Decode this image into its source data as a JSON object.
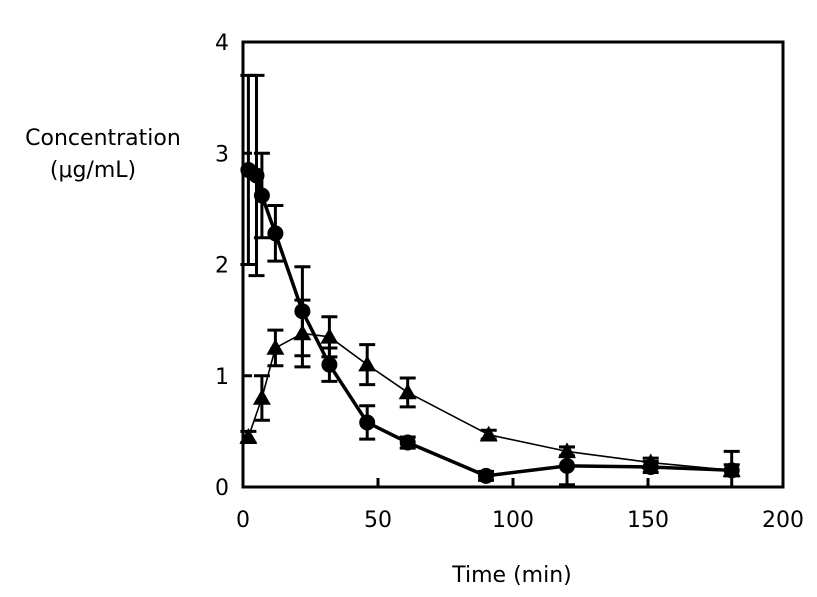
{
  "chart_data": {
    "type": "line",
    "title": "",
    "ylabel": [
      "Concentration",
      "(μg/mL)"
    ],
    "xlabel": "Time (min)",
    "xlim": [
      0,
      200
    ],
    "ylim": [
      0,
      4
    ],
    "xticks": [
      0,
      50,
      100,
      150,
      200
    ],
    "yticks": [
      0,
      1,
      2,
      3,
      4
    ],
    "grid": false,
    "legend": "none",
    "series": [
      {
        "marker": "circle",
        "line_weight": "bold",
        "x": [
          2,
          5,
          7,
          12,
          22,
          32,
          46,
          61,
          90,
          120,
          151,
          181
        ],
        "y": [
          2.85,
          2.8,
          2.62,
          2.28,
          1.58,
          1.1,
          0.58,
          0.4,
          0.1,
          0.19,
          0.18,
          0.15
        ],
        "err": [
          0.85,
          0.9,
          0.38,
          0.25,
          0.4,
          0.15,
          0.15,
          0.05,
          0.04,
          0.17,
          0.05,
          0.17
        ]
      },
      {
        "marker": "triangle",
        "line_weight": "thin",
        "x": [
          2,
          7,
          12,
          22,
          32,
          46,
          61,
          91,
          120,
          151,
          181
        ],
        "y": [
          0.45,
          0.8,
          1.25,
          1.38,
          1.35,
          1.1,
          0.85,
          0.47,
          0.32,
          0.22,
          0.15
        ],
        "err": [
          0.05,
          0.2,
          0.16,
          0.3,
          0.18,
          0.18,
          0.13,
          0.04,
          0.04,
          0.04,
          0.05
        ]
      }
    ]
  }
}
